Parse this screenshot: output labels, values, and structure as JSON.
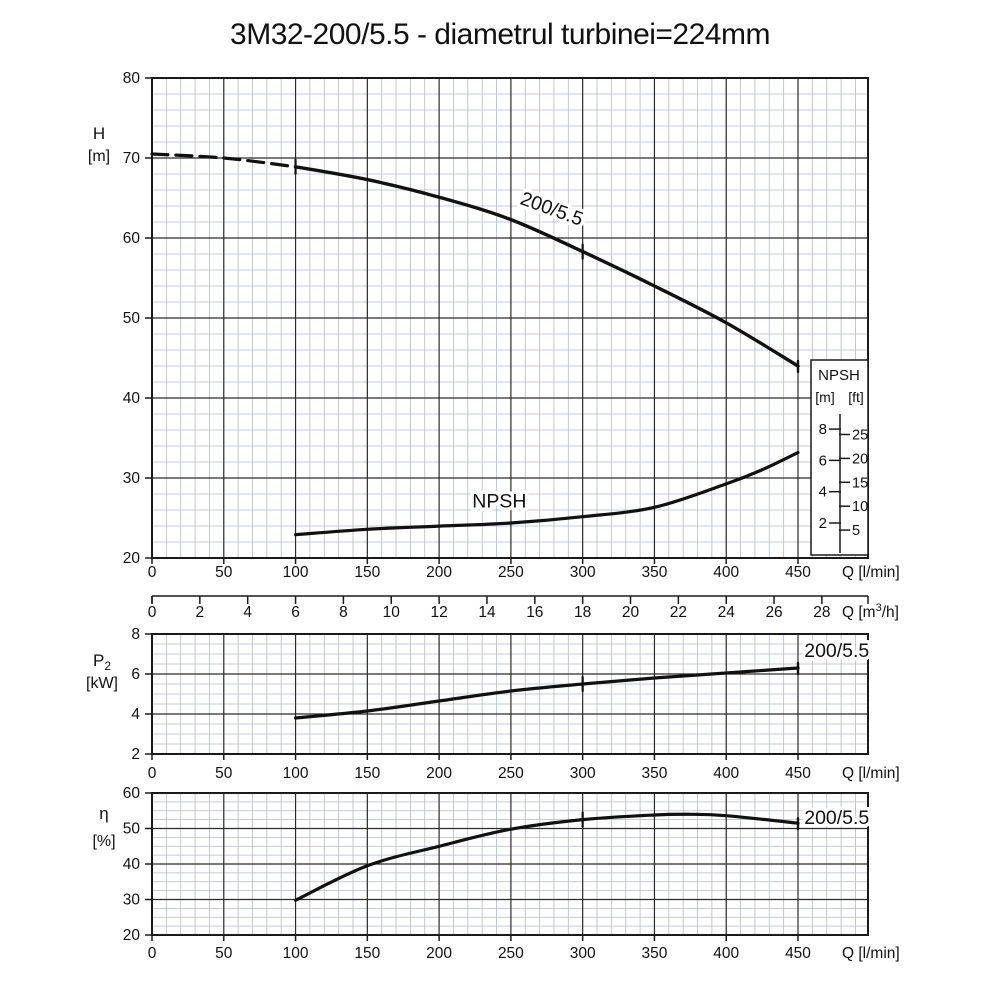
{
  "title": "3M32-200/5.5 - diametrul turbinei=224mm",
  "colors": {
    "background": "#ffffff",
    "curve": "#111111",
    "minor_grid": "#b6bac4",
    "major_grid": "#2b2b2b",
    "frame": "#1a1a1a",
    "text": "#111111"
  },
  "secondary_axis": {
    "ticks": [
      0,
      2,
      4,
      6,
      8,
      10,
      12,
      14,
      16,
      18,
      20,
      22,
      24,
      26,
      28
    ],
    "label_prefix": "Q [m",
    "label_sup": "3",
    "label_suffix": "/h]"
  },
  "chart_data": [
    {
      "id": "head",
      "type": "line",
      "ylabel": "H",
      "ylabel_sub": "",
      "yunit": "[m]",
      "xunit": "Q [l/min]",
      "xlim": [
        0,
        450
      ],
      "ylim": [
        20,
        80
      ],
      "x_ticks": [
        0,
        50,
        100,
        150,
        200,
        250,
        300,
        350,
        400,
        450
      ],
      "y_ticks": [
        80,
        70,
        60,
        50,
        40,
        30,
        20
      ],
      "x_minor_step": 10,
      "y_minor_step": 2,
      "series": [
        {
          "name": "200/5.5",
          "q": [
            0,
            50,
            100,
            150,
            200,
            250,
            300,
            350,
            400,
            450
          ],
          "v": [
            70.5,
            70.0,
            68.9,
            67.3,
            65.1,
            62.3,
            58.3,
            54.0,
            49.4,
            44.0
          ],
          "dash_until_q": 100,
          "marker_q": [
            100,
            300
          ],
          "end_tick": true,
          "label": {
            "text": "200/5.5",
            "q": 277,
            "v": 62.9,
            "rotate": 20
          }
        },
        {
          "name": "NPSH",
          "axis": "npsh",
          "q": [
            100,
            150,
            200,
            250,
            300,
            350,
            400,
            425,
            450
          ],
          "v": [
            1.25,
            1.6,
            1.8,
            2.0,
            2.4,
            3.0,
            4.5,
            5.4,
            6.5
          ],
          "marker_q": [],
          "end_tick": false,
          "label": {
            "text": "NPSH",
            "q": 242,
            "v": 3.0,
            "rotate": 0
          }
        }
      ],
      "npsh_axis": {
        "title": "NPSH",
        "unit_m": "[m]",
        "unit_ft": "[ft]",
        "m_ticks": [
          8,
          6,
          4,
          2
        ],
        "ft_ticks": [
          25,
          20,
          15,
          10,
          5
        ]
      }
    },
    {
      "id": "power",
      "type": "line",
      "ylabel": "P",
      "ylabel_sub": "2",
      "yunit": "[kW]",
      "xunit": "Q [l/min]",
      "xlim": [
        0,
        450
      ],
      "ylim": [
        2,
        8
      ],
      "x_ticks": [
        0,
        50,
        100,
        150,
        200,
        250,
        300,
        350,
        400,
        450
      ],
      "y_ticks": [
        8,
        6,
        4,
        2
      ],
      "x_minor_step": 10,
      "y_minor_step": 0.5,
      "series": [
        {
          "name": "200/5.5",
          "q": [
            100,
            150,
            200,
            250,
            300,
            350,
            400,
            450
          ],
          "v": [
            3.8,
            4.15,
            4.65,
            5.15,
            5.5,
            5.8,
            6.05,
            6.3
          ],
          "marker_q": [
            300
          ],
          "end_tick": true,
          "label": {
            "text": "200/5.5",
            "q": 477,
            "v": 6.85,
            "rotate": 0
          }
        }
      ]
    },
    {
      "id": "efficiency",
      "type": "line",
      "ylabel": "η",
      "ylabel_sub": "",
      "yunit": "[%]",
      "xunit": "Q [l/min]",
      "xlim": [
        0,
        450
      ],
      "ylim": [
        20,
        60
      ],
      "x_ticks": [
        0,
        50,
        100,
        150,
        200,
        250,
        300,
        350,
        400,
        450
      ],
      "y_ticks": [
        60,
        50,
        40,
        30,
        20
      ],
      "x_minor_step": 10,
      "y_minor_step": 2.5,
      "series": [
        {
          "name": "200/5.5",
          "q": [
            100,
            150,
            200,
            250,
            300,
            350,
            375,
            400,
            450
          ],
          "v": [
            29.8,
            39.5,
            45.0,
            49.8,
            52.5,
            53.8,
            54.0,
            53.6,
            51.5
          ],
          "marker_q": [
            300
          ],
          "end_tick": true,
          "label": {
            "text": "200/5.5",
            "q": 477,
            "v": 51.2,
            "rotate": 0
          }
        }
      ]
    }
  ]
}
